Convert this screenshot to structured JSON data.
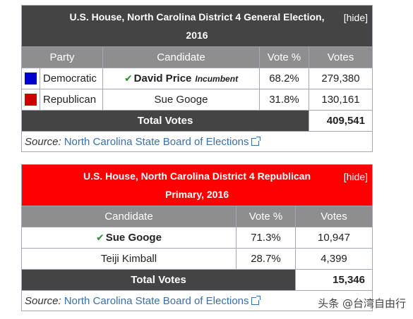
{
  "general": {
    "title": "U.S. House, North Carolina District 4 General Election, 2016",
    "title_bg": "#444444",
    "hide_label": "[hide]",
    "headers": [
      "Party",
      "Candidate",
      "Vote %",
      "Votes"
    ],
    "rows": [
      {
        "party": "Democratic",
        "party_color": "#0000cc",
        "candidate": "David Price",
        "incumbent": "Incumbent",
        "winner": true,
        "pct": "68.2%",
        "votes": "279,380"
      },
      {
        "party": "Republican",
        "party_color": "#cc0000",
        "candidate": "Sue Googe",
        "incumbent": "",
        "winner": false,
        "pct": "31.8%",
        "votes": "130,161"
      }
    ],
    "total_label": "Total Votes",
    "total_votes": "409,541",
    "source_label": "Source:",
    "source_link": "North Carolina State Board of Elections"
  },
  "primary": {
    "title": "U.S. House, North Carolina District 4 Republican Primary, 2016",
    "title_bg": "#ff0000",
    "hide_label": "[hide]",
    "headers": [
      "Candidate",
      "Vote %",
      "Votes"
    ],
    "rows": [
      {
        "candidate": "Sue Googe",
        "winner": true,
        "pct": "71.3%",
        "votes": "10,947"
      },
      {
        "candidate": "Teiji Kimball",
        "winner": false,
        "pct": "28.7%",
        "votes": "4,399"
      }
    ],
    "total_label": "Total Votes",
    "total_votes": "15,346",
    "source_label": "Source:",
    "source_link": "North Carolina State Board of Elections"
  },
  "watermark": "头条 @台湾自由行",
  "check_icon": "✔",
  "link_color": "#3a6fa8"
}
